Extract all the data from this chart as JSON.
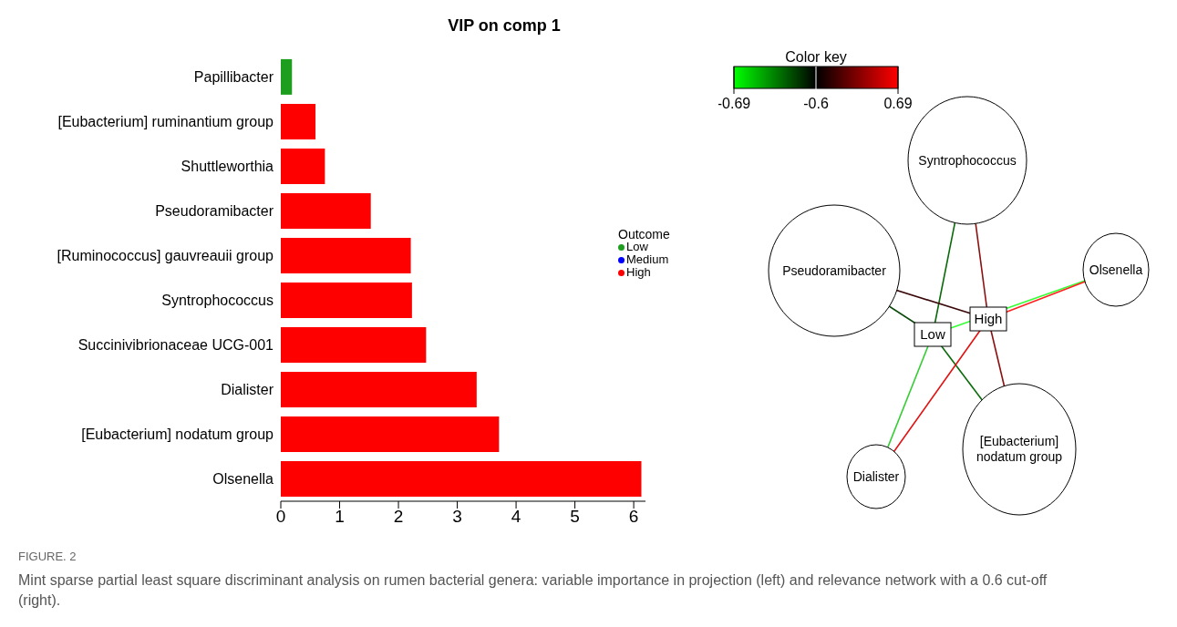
{
  "chart_data": [
    {
      "type": "bar",
      "orientation": "horizontal",
      "stacked": true,
      "title": "VIP on comp 1",
      "categories": [
        "Papillibacter",
        "[Eubacterium] ruminantium group",
        "Shuttleworthia",
        "Pseudoramibacter",
        "[Ruminococcus] gauvreauii group",
        "Syntrophococcus",
        "Succinivibrionaceae UCG-001",
        "Dialister",
        "[Eubacterium] nodatum group",
        "Olsenella"
      ],
      "series": [
        {
          "name": "Low",
          "color": "#1e9e1e",
          "values": [
            0.19,
            null,
            null,
            null,
            null,
            null,
            null,
            null,
            null,
            null
          ]
        },
        {
          "name": "Medium",
          "color": "#0000ff",
          "values": [
            null,
            null,
            null,
            null,
            null,
            null,
            null,
            null,
            null,
            null
          ]
        },
        {
          "name": "High",
          "color": "#ff0000",
          "values": [
            null,
            0.59,
            0.75,
            1.53,
            2.21,
            2.23,
            2.47,
            3.33,
            3.71,
            6.13
          ]
        }
      ],
      "legend_title": "Outcome",
      "legend": "right",
      "xlim": [
        0,
        6.2
      ],
      "xticks": [
        0,
        1,
        2,
        3,
        4,
        5,
        6
      ],
      "annotations": [
        "FIGURE. 2",
        "Mint sparse partial least square discriminant analysis on rumen bacterial genera: variable importance in projection (left) and relevance network with a 0.6 cut-off (right)."
      ]
    },
    {
      "type": "other",
      "annotations": [
        "Syntrophococcus",
        "Pseudoramibacter",
        "Olsenella",
        "[Eubacterium] nodatum group",
        "Dialister",
        "Low",
        "High",
        "Color key",
        "-0.69",
        "-0.6",
        "0.69"
      ]
    }
  ]
}
